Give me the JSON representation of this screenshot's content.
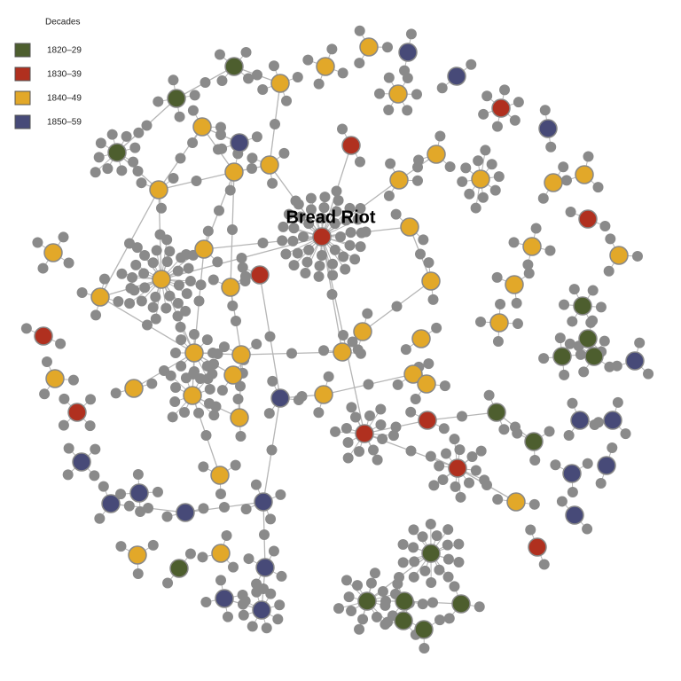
{
  "legend": {
    "title": "Decades",
    "items": [
      {
        "label": "1820–29",
        "color": "#4d5e2e"
      },
      {
        "label": "1830–39",
        "color": "#b0301f"
      },
      {
        "label": "1840–49",
        "color": "#e2a829"
      },
      {
        "label": "1850–59",
        "color": "#474a78"
      }
    ]
  },
  "nodes": [
    {
      "label": "Bread Riot"
    }
  ]
}
